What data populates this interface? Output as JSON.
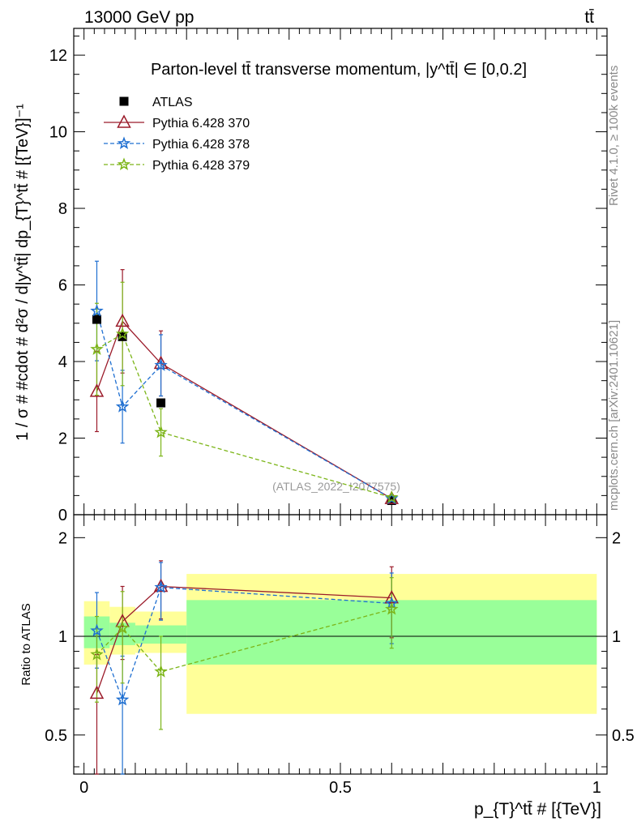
{
  "header": {
    "energy_label": "13000 GeV pp",
    "process_label": "tt̄",
    "side_rivet": "Rivet 4.1.0, ≥ 100k events",
    "side_mcplots": "mcplots.cern.ch [arXiv:2401.10621]",
    "analysis_watermark": "(ATLAS_2022_I2077575)"
  },
  "chart_data": [
    {
      "type": "scatter",
      "title": "Parton-level tt̄ transverse momentum, |y^tt̄| ∈ [0,0.2]",
      "xlabel": "p_{T}^tt̄ # [{TeV}]",
      "ylabel": "1 / σ # #cdot # d²σ / d|y^tt̄| dp_{T}^tt̄ # [{TeV}]⁻¹",
      "xlim": [
        -0.02,
        1.02
      ],
      "ylim": [
        0,
        12.7
      ],
      "x_ticks": [
        "0",
        "0.5",
        "1"
      ],
      "y_ticks": [
        "0",
        "2",
        "4",
        "6",
        "8",
        "10",
        "12"
      ],
      "legend_position": "top-left",
      "series": [
        {
          "name": "ATLAS",
          "color": "#000000",
          "marker": "square",
          "line": "none",
          "x": [
            0.025,
            0.075,
            0.15,
            0.6
          ],
          "y": [
            5.1,
            4.65,
            2.92,
            0.37
          ],
          "err": [
            0.05,
            0.05,
            0.05,
            0.02
          ]
        },
        {
          "name": "Pythia 6.428 370",
          "color": "#9b1b2a",
          "marker": "triangle",
          "line": "solid",
          "x": [
            0.025,
            0.075,
            0.15,
            0.6
          ],
          "y": [
            3.22,
            5.05,
            3.95,
            0.42
          ],
          "err": [
            1.05,
            1.35,
            0.85,
            0.06
          ]
        },
        {
          "name": "Pythia 6.428 378",
          "color": "#1f6fd1",
          "marker": "star",
          "line": "dashed",
          "x": [
            0.025,
            0.075,
            0.15,
            0.6
          ],
          "y": [
            5.32,
            2.82,
            3.9,
            0.42
          ],
          "err": [
            1.3,
            0.95,
            0.8,
            0.06
          ]
        },
        {
          "name": "Pythia 6.428 379",
          "color": "#7cb518",
          "marker": "star",
          "line": "dashed",
          "x": [
            0.025,
            0.075,
            0.15,
            0.6
          ],
          "y": [
            4.32,
            4.72,
            2.15,
            0.45
          ],
          "err": [
            1.2,
            1.35,
            0.62,
            0.07
          ]
        }
      ]
    },
    {
      "type": "scatter",
      "ylabel": "Ratio to ATLAS",
      "xlim": [
        -0.02,
        1.02
      ],
      "ylim": [
        0.38,
        2.35
      ],
      "x_ticks": [
        "0",
        "0.5",
        "1"
      ],
      "y_ticks": [
        "0.5",
        "1",
        "2"
      ],
      "bands": [
        {
          "x": [
            0,
            0.05
          ],
          "yellow": [
            0.82,
            1.28
          ],
          "green": [
            0.92,
            1.15
          ]
        },
        {
          "x": [
            0.05,
            0.1
          ],
          "yellow": [
            0.88,
            1.23
          ],
          "green": [
            0.94,
            1.1
          ]
        },
        {
          "x": [
            0.1,
            0.2
          ],
          "yellow": [
            0.89,
            1.19
          ],
          "green": [
            0.95,
            1.08
          ]
        },
        {
          "x": [
            0.2,
            1.0
          ],
          "yellow": [
            0.58,
            1.55
          ],
          "green": [
            0.82,
            1.29
          ]
        }
      ],
      "series": [
        {
          "name": "Pythia 6.428 370",
          "color": "#9b1b2a",
          "marker": "triangle",
          "line": "solid",
          "x": [
            0.025,
            0.075,
            0.15,
            0.6
          ],
          "y": [
            0.67,
            1.11,
            1.42,
            1.31
          ],
          "ylo": [
            0.38,
            0.85,
            1.13,
            0.99
          ],
          "yhi": [
            0.88,
            1.42,
            1.7,
            1.63
          ]
        },
        {
          "name": "Pythia 6.428 378",
          "color": "#1f6fd1",
          "marker": "star",
          "line": "dashed",
          "x": [
            0.025,
            0.075,
            0.15,
            0.6
          ],
          "y": [
            1.04,
            0.64,
            1.41,
            1.26
          ],
          "ylo": [
            0.8,
            0.38,
            1.12,
            0.95
          ],
          "yhi": [
            1.36,
            0.87,
            1.68,
            1.56
          ]
        },
        {
          "name": "Pythia 6.428 379",
          "color": "#7cb518",
          "marker": "star",
          "line": "dashed",
          "x": [
            0.025,
            0.075,
            0.15,
            0.6
          ],
          "y": [
            0.88,
            1.06,
            0.78,
            1.21
          ],
          "ylo": [
            0.63,
            0.72,
            0.52,
            0.92
          ],
          "yhi": [
            1.15,
            1.37,
            1.0,
            1.51
          ]
        }
      ]
    }
  ]
}
